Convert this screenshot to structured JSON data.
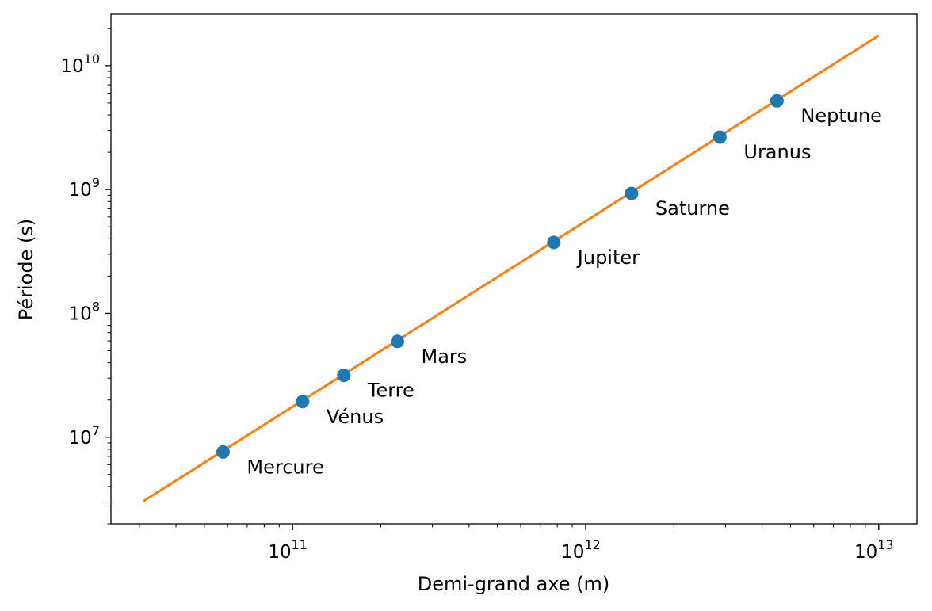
{
  "chart_data": {
    "type": "scatter",
    "title": "",
    "xlabel": "Demi-grand axe (m)",
    "ylabel": "Période (s)",
    "xscale": "log",
    "yscale": "log",
    "xlim": [
      24000000000.0,
      13500000000000.0
    ],
    "ylim": [
      2000000.0,
      26000000000.0
    ],
    "grid": false,
    "legend": "none",
    "x_ticks": [
      {
        "value": 100000000000.0,
        "base": "10",
        "exp": "11"
      },
      {
        "value": 1000000000000.0,
        "base": "10",
        "exp": "12"
      },
      {
        "value": 10000000000000.0,
        "base": "10",
        "exp": "13"
      }
    ],
    "y_ticks": [
      {
        "value": 10000000.0,
        "base": "10",
        "exp": "7"
      },
      {
        "value": 100000000.0,
        "base": "10",
        "exp": "8"
      },
      {
        "value": 1000000000.0,
        "base": "10",
        "exp": "9"
      },
      {
        "value": 10000000000.0,
        "base": "10",
        "exp": "10"
      }
    ],
    "points": [
      {
        "label": "Mercure",
        "x": 57900000000.0,
        "y": 7600000.0
      },
      {
        "label": "Vénus",
        "x": 108200000000.0,
        "y": 19400000.0
      },
      {
        "label": "Terre",
        "x": 149600000000.0,
        "y": 31600000.0
      },
      {
        "label": "Mars",
        "x": 227900000000.0,
        "y": 59400000.0
      },
      {
        "label": "Jupiter",
        "x": 778500000000.0,
        "y": 374000000.0
      },
      {
        "label": "Saturne",
        "x": 1434000000000.0,
        "y": 930000000.0
      },
      {
        "label": "Uranus",
        "x": 2871000000000.0,
        "y": 2650000000.0
      },
      {
        "label": "Neptune",
        "x": 4495000000000.0,
        "y": 5200000000.0
      }
    ],
    "fit_line": {
      "x": [
        31000000000.0,
        10000000000000.0
      ],
      "y": [
        3050000.0,
        17500000000.0
      ]
    },
    "colors": {
      "points": "#1f77b4",
      "line": "#ff7f0e",
      "axes": "#000000"
    }
  }
}
